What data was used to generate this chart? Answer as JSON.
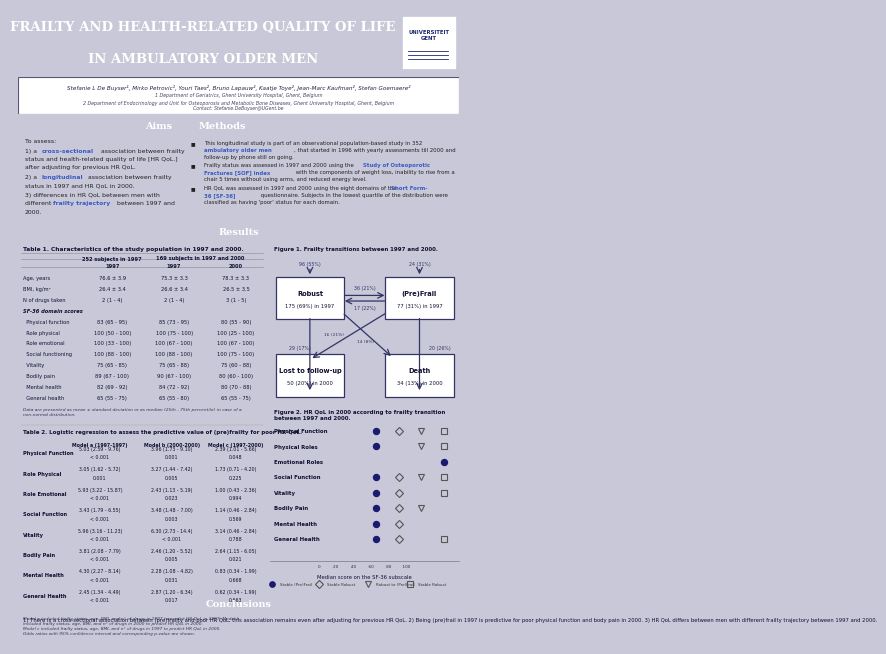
{
  "title_line1": "Frailty and Health-Related Quality of Life",
  "title_line2": "in Ambulatory Older Men",
  "title_bg": "#1a2a6c",
  "authors": "Stefanie L De Buyser¹, Mirko Petrovic¹, Youri Taes², Bruno Lapauw², Kaatje Toye², Jean-Marc Kaufman², Stefan Goemaere²",
  "dept1": "1 Department of Geriatrics, Ghent University Hospital, Ghent, Belgium",
  "dept2": "2 Department of Endocrinology and Unit for Osteoporosis and Metabolic Bone Diseases, Ghent University Hospital, Ghent, Belgium",
  "contact": "Contact: Stefanie.DeBuyser@UGent.be",
  "section_bg": "#2e3b8e",
  "body_bg": "#e8e8f0",
  "table1_title": "Table 1. Characteristics of the study population in 1997 and 2000.",
  "table2_title": "Table 2. Logistic regression to assess the predictive value of (pre)frailty for poor HR QoL.",
  "conclusions_text": "1) There is a cross-sectional association between (pre)frailty and poor HR QoL, this association remains even after adjusting for previous HR QoL. 2) Being (pre)frail in 1997 is predictive for poor physical function and body pain in 2000. 3) HR QoL differs between men with different frailty trajectory between 1997 and 2000.",
  "highlight_blue": "#3a5bc0"
}
